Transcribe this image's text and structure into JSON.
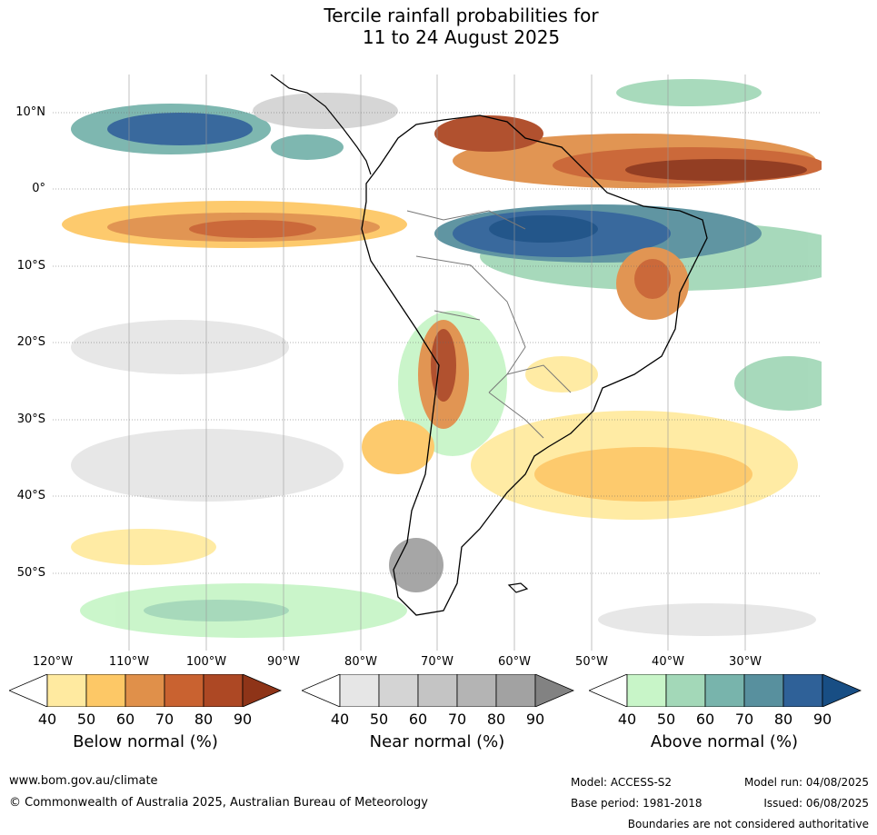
{
  "title": {
    "line1": "Tercile rainfall probabilities for",
    "line2": "11 to 24 August 2025"
  },
  "map": {
    "lat_labels": [
      "10°N",
      "0°",
      "10°S",
      "20°S",
      "30°S",
      "40°S",
      "50°S"
    ],
    "lon_labels": [
      "120°W",
      "110°W",
      "100°W",
      "90°W",
      "80°W",
      "70°W",
      "60°W",
      "50°W",
      "40°W",
      "30°W"
    ],
    "gridlines": true
  },
  "colorbars": [
    {
      "title": "Below normal (%)",
      "ticks": [
        "40",
        "50",
        "60",
        "70",
        "80",
        "90"
      ],
      "colors": [
        "#ffffff",
        "#ffeaa0",
        "#fdc866",
        "#e0904a",
        "#c96230",
        "#ad4824",
        "#8e3418"
      ]
    },
    {
      "title": "Near normal (%)",
      "ticks": [
        "40",
        "50",
        "60",
        "70",
        "80",
        "90"
      ],
      "colors": [
        "#ffffff",
        "#e6e6e6",
        "#d4d4d4",
        "#c4c4c4",
        "#b4b4b4",
        "#a2a2a2",
        "#828282"
      ]
    },
    {
      "title": "Above normal (%)",
      "ticks": [
        "40",
        "50",
        "60",
        "70",
        "80",
        "90"
      ],
      "colors": [
        "#ffffff",
        "#c8f5c8",
        "#a3d8b8",
        "#78b4ac",
        "#58909e",
        "#2f6198",
        "#184e84"
      ]
    }
  ],
  "footer": {
    "website": "www.bom.gov.au/climate",
    "copyright": "© Commonwealth of Australia 2025, Australian Bureau of Meteorology",
    "model": "Model: ACCESS-S2",
    "model_run": "Model run: 04/08/2025",
    "base_period": "Base period: 1981-2018",
    "issued": "Issued: 06/08/2025",
    "disclaimer": "Boundaries are not considered authoritative"
  }
}
